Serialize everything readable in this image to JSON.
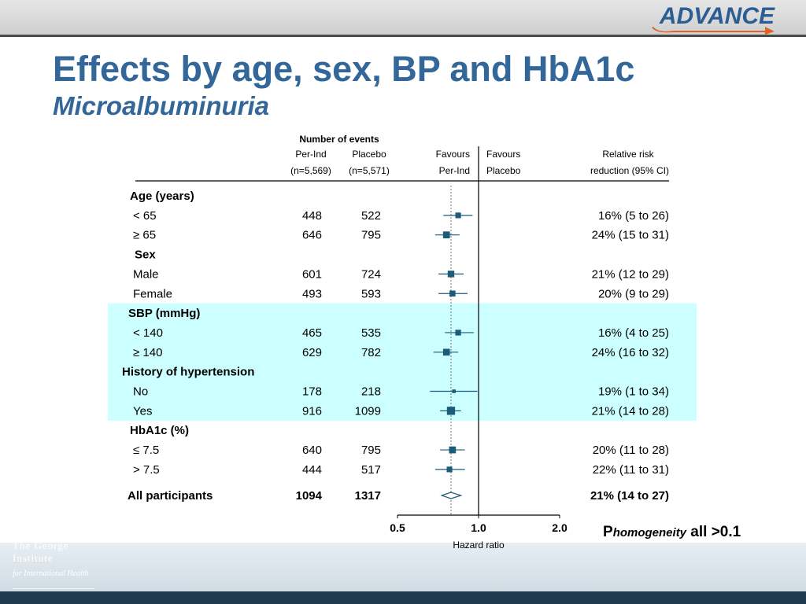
{
  "header": {
    "logo_text": "ADVANCE"
  },
  "title": "Effects by age, sex, BP and HbA1c",
  "subtitle": "Microalbuminuria",
  "institute": {
    "line1": "The George",
    "line2": "Institute",
    "line3": "for International Health"
  },
  "colors": {
    "title": "#336699",
    "highlight": "#ccffff",
    "marker": "#1a5c7a",
    "bar": "#4a4a4a"
  },
  "table_headers": {
    "events": "Number of events",
    "perind": "Per-Ind",
    "perind_n": "(n=5,569)",
    "placebo": "Placebo",
    "placebo_n": "(n=5,571)",
    "fav1a": "Favours",
    "fav1b": "Per-Ind",
    "fav2a": "Favours",
    "fav2b": "Placebo",
    "rr1": "Relative risk",
    "rr2": "reduction (95% CI)"
  },
  "p_text": {
    "prefix": "P",
    "italic": "homogeneity",
    "suffix": " all >0.1"
  },
  "chart_data": {
    "type": "forest",
    "xlabel": "Hazard ratio",
    "xscale": "log",
    "xlim": [
      0.5,
      2.0
    ],
    "xticks": [
      "0.5",
      "1.0",
      "2.0"
    ],
    "rows": [
      {
        "label": "Age (years)",
        "header": true
      },
      {
        "label": "< 65",
        "perind": "448",
        "placebo": "522",
        "rrr": "16%   (5 to 26)",
        "hr": 0.84,
        "lo": 0.74,
        "hi": 0.95
      },
      {
        "label": "≥ 65",
        "perind": "646",
        "placebo": "795",
        "rrr": "24%  (15 to 31)",
        "hr": 0.76,
        "lo": 0.69,
        "hi": 0.85
      },
      {
        "label": "Sex",
        "header": true
      },
      {
        "label": "Male",
        "perind": "601",
        "placebo": "724",
        "rrr": "21%  (12 to 29)",
        "hr": 0.79,
        "lo": 0.71,
        "hi": 0.88
      },
      {
        "label": "Female",
        "perind": "493",
        "placebo": "593",
        "rrr": "20%   (9 to 29)",
        "hr": 0.8,
        "lo": 0.71,
        "hi": 0.91
      },
      {
        "label": "SBP (mmHg)",
        "header": true,
        "highlight": true
      },
      {
        "label": "< 140",
        "perind": "465",
        "placebo": "535",
        "rrr": "16%   (4 to 25)",
        "hr": 0.84,
        "lo": 0.75,
        "hi": 0.96,
        "highlight": true
      },
      {
        "label": "≥ 140",
        "perind": "629",
        "placebo": "782",
        "rrr": "24%  (16 to 32)",
        "hr": 0.76,
        "lo": 0.68,
        "hi": 0.84,
        "highlight": true
      },
      {
        "label": "History of hypertension",
        "header": true,
        "highlight": true
      },
      {
        "label": "No",
        "perind": "178",
        "placebo": "218",
        "rrr": "19%   (1 to 34)",
        "hr": 0.81,
        "lo": 0.66,
        "hi": 0.99,
        "highlight": true
      },
      {
        "label": "Yes",
        "perind": "916",
        "placebo": "1099",
        "rrr": "21%  (14 to 28)",
        "hr": 0.79,
        "lo": 0.72,
        "hi": 0.86,
        "highlight": true
      },
      {
        "label": "HbA1c (%)",
        "header": true
      },
      {
        "label": "≤ 7.5",
        "perind": "640",
        "placebo": "795",
        "rrr": "20%  (11 to 28)",
        "hr": 0.8,
        "lo": 0.72,
        "hi": 0.89
      },
      {
        "label": "> 7.5",
        "perind": "444",
        "placebo": "517",
        "rrr": "22%  (11 to 31)",
        "hr": 0.78,
        "lo": 0.69,
        "hi": 0.89
      }
    ],
    "overall": {
      "label": "All participants",
      "perind": "1094",
      "placebo": "1317",
      "rrr": "21%  (14 to 27)",
      "hr": 0.79,
      "lo": 0.73,
      "hi": 0.86
    }
  }
}
